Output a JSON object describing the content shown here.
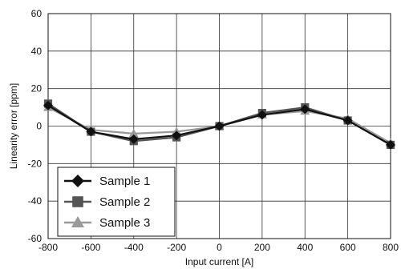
{
  "chart_data": {
    "type": "line",
    "xlabel": "Input current [A]",
    "ylabel": "Linearity error [ppm]",
    "xlim": [
      -800,
      800
    ],
    "ylim": [
      -60,
      60
    ],
    "xticks": [
      -800,
      -600,
      -400,
      -200,
      0,
      200,
      400,
      600,
      800
    ],
    "yticks": [
      -60,
      -40,
      -20,
      0,
      20,
      40,
      60
    ],
    "xtick_labels": [
      "-800",
      "-600",
      "-400",
      "-200",
      "0",
      "200",
      "400",
      "600",
      "800"
    ],
    "ytick_labels": [
      "-60",
      "-40",
      "-20",
      "0",
      "20",
      "40",
      "60"
    ],
    "grid": true,
    "legend_position": "bottom-left",
    "x": [
      -800,
      -600,
      -400,
      -200,
      0,
      200,
      400,
      600,
      800
    ],
    "series": [
      {
        "name": "Sample 1",
        "marker": "diamond",
        "color": "#111111",
        "values": [
          11,
          -3,
          -7,
          -5,
          0,
          6,
          9,
          3,
          -10
        ]
      },
      {
        "name": "Sample 2",
        "marker": "square",
        "color": "#555555",
        "values": [
          12,
          -3,
          -8,
          -6,
          0,
          7,
          10,
          3,
          -10
        ]
      },
      {
        "name": "Sample 3",
        "marker": "triangle",
        "color": "#999999",
        "values": [
          10,
          -2,
          -4,
          -3,
          0,
          6,
          8,
          4,
          -9
        ]
      }
    ]
  }
}
